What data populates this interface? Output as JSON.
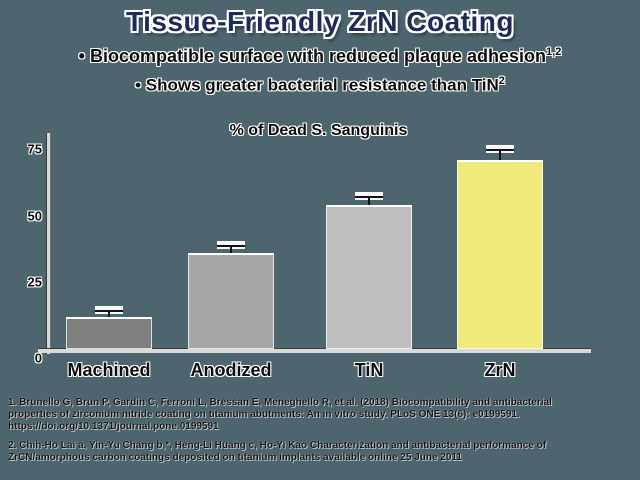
{
  "title": "Tissue-Friendly ZrN Coating",
  "bullets": [
    {
      "marker": "•",
      "text": "Biocompatible surface with reduced plaque adhesion",
      "sup": "1,2"
    },
    {
      "marker": "•",
      "text": "Shows greater bacterial resistance than TiN",
      "sup": "2"
    }
  ],
  "chart_data": {
    "type": "bar",
    "title": "% of Dead S. Sanguinis",
    "categories": [
      "Machined",
      "Anodized",
      "TiN",
      "ZrN"
    ],
    "values": [
      12,
      36,
      54,
      71
    ],
    "errors": [
      2.5,
      3,
      3.5,
      4
    ],
    "bar_colors": [
      "#7f7f7f",
      "#a6a6a6",
      "#bfbfbf",
      "#f0ea7c"
    ],
    "highlight_category": "ZrN",
    "xlabel": "",
    "ylabel": "",
    "ylim": [
      0,
      80
    ],
    "yticks": [
      0,
      25,
      50,
      75
    ],
    "grid": false,
    "legend": false,
    "error_bars": true
  },
  "footnotes": [
    {
      "lines": [
        "1. Brunello G, Brun P, Gardin C, Ferroni L, Bressan E, Meneghello R, et al. (2018) Biocompatibility and antibacterial",
        "properties of zirconium nitride coating on titanium abutments: An in vitro study. PLoS ONE 13(6): e0199591.",
        "https://doi.org/10.1371/journal.pone.0199591"
      ]
    },
    {
      "lines": [
        "2. Chih-Ho Lai a, Yin-Yu Chang b,*, Heng-Li Huang c, Ho-Yi Kao Characterization and antibacterial performance of",
        "ZrCN/amorphous carbon coatings deposited on titanium implants available online 25 June 2011"
      ]
    }
  ],
  "colors": {
    "background": "#4d656e",
    "title": "#1e2b56",
    "text": "#0d0d0d",
    "highlight_bar": "#f0ea7c",
    "axis_light": "#d9d9d9",
    "axis_dark": "#3c3c3c"
  }
}
